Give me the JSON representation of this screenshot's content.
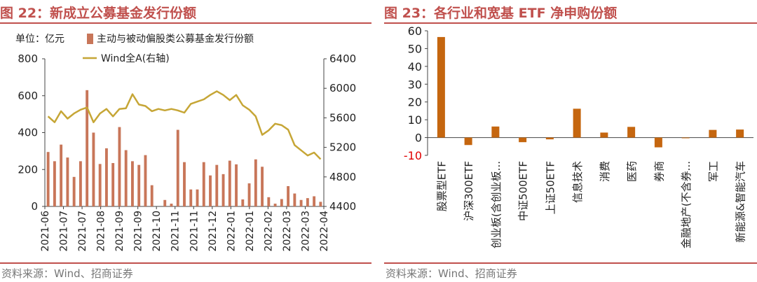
{
  "left": {
    "title": "图 22：新成立公募基金发行份额",
    "source": "资料来源：Wind、招商证券",
    "unit_label": "单位：亿元",
    "colors": {
      "bar": "#c87659",
      "line": "#c6a636",
      "title": "#c0504d"
    }
  },
  "right": {
    "title": "图 23：各行业和宽基 ETF 净申购份额",
    "source": "资料来源：Wind、招商证券",
    "colors": {
      "bar": "#c5660f",
      "title": "#c0504d"
    }
  },
  "chart_data": [
    {
      "type": "bar+line",
      "title": "图 22：新成立公募基金发行份额",
      "unit": "单位：亿元",
      "series": [
        {
          "name": "主动与被动偏股类公募基金发行份额",
          "type": "bar",
          "axis": "left",
          "values": [
            295,
            245,
            335,
            265,
            160,
            245,
            630,
            400,
            230,
            315,
            235,
            430,
            305,
            245,
            225,
            278,
            115,
            0,
            35,
            15,
            415,
            240,
            92,
            92,
            240,
            168,
            225,
            175,
            248,
            228,
            38,
            125,
            255,
            215,
            50,
            15,
            40,
            110,
            70,
            35,
            45,
            55,
            25
          ]
        },
        {
          "name": "Wind全A(右轴)",
          "type": "line",
          "axis": "right",
          "values": [
            5620,
            5540,
            5690,
            5590,
            5660,
            5710,
            5740,
            5540,
            5660,
            5720,
            5620,
            5720,
            5730,
            5920,
            5780,
            5760,
            5690,
            5720,
            5700,
            5720,
            5700,
            5670,
            5790,
            5820,
            5850,
            5910,
            5960,
            5910,
            5840,
            5910,
            5770,
            5710,
            5620,
            5370,
            5430,
            5520,
            5500,
            5440,
            5230,
            5160,
            5090,
            5130,
            5040
          ]
        }
      ],
      "x_tick_labels": [
        "2021-06",
        "2021-07",
        "2021-07",
        "2021-08",
        "2021-09",
        "2021-09",
        "2021-10",
        "2021-11",
        "2021-11",
        "2021-12",
        "2022-01",
        "2022-01",
        "2022-02",
        "2022-03",
        "2022-03",
        "2022-04"
      ],
      "y_left": {
        "min": 0,
        "max": 800,
        "ticks": [
          0,
          200,
          400,
          600,
          800
        ]
      },
      "y_right": {
        "min": 4400,
        "max": 6400,
        "ticks": [
          4400,
          4800,
          5200,
          5600,
          6000,
          6400
        ]
      },
      "legend_position": "top-left"
    },
    {
      "type": "bar",
      "title": "图 23：各行业和宽基 ETF 净申购份额",
      "categories": [
        "股票型ETF",
        "沪深300ETF",
        "创业板(含创业板...",
        "中证500ETF",
        "上证50ETF",
        "信息技术",
        "消费",
        "医药",
        "券商",
        "金融地产(不含券...",
        "军工",
        "新能源&智能汽车"
      ],
      "values": [
        56.5,
        -4.2,
        6.2,
        -2.6,
        -1.0,
        16.2,
        2.8,
        6.0,
        -5.5,
        -0.3,
        4.3,
        4.5
      ],
      "ylim": [
        -10,
        60
      ],
      "y_ticks": [
        -10,
        0,
        10,
        20,
        30,
        40,
        50,
        60
      ]
    }
  ]
}
